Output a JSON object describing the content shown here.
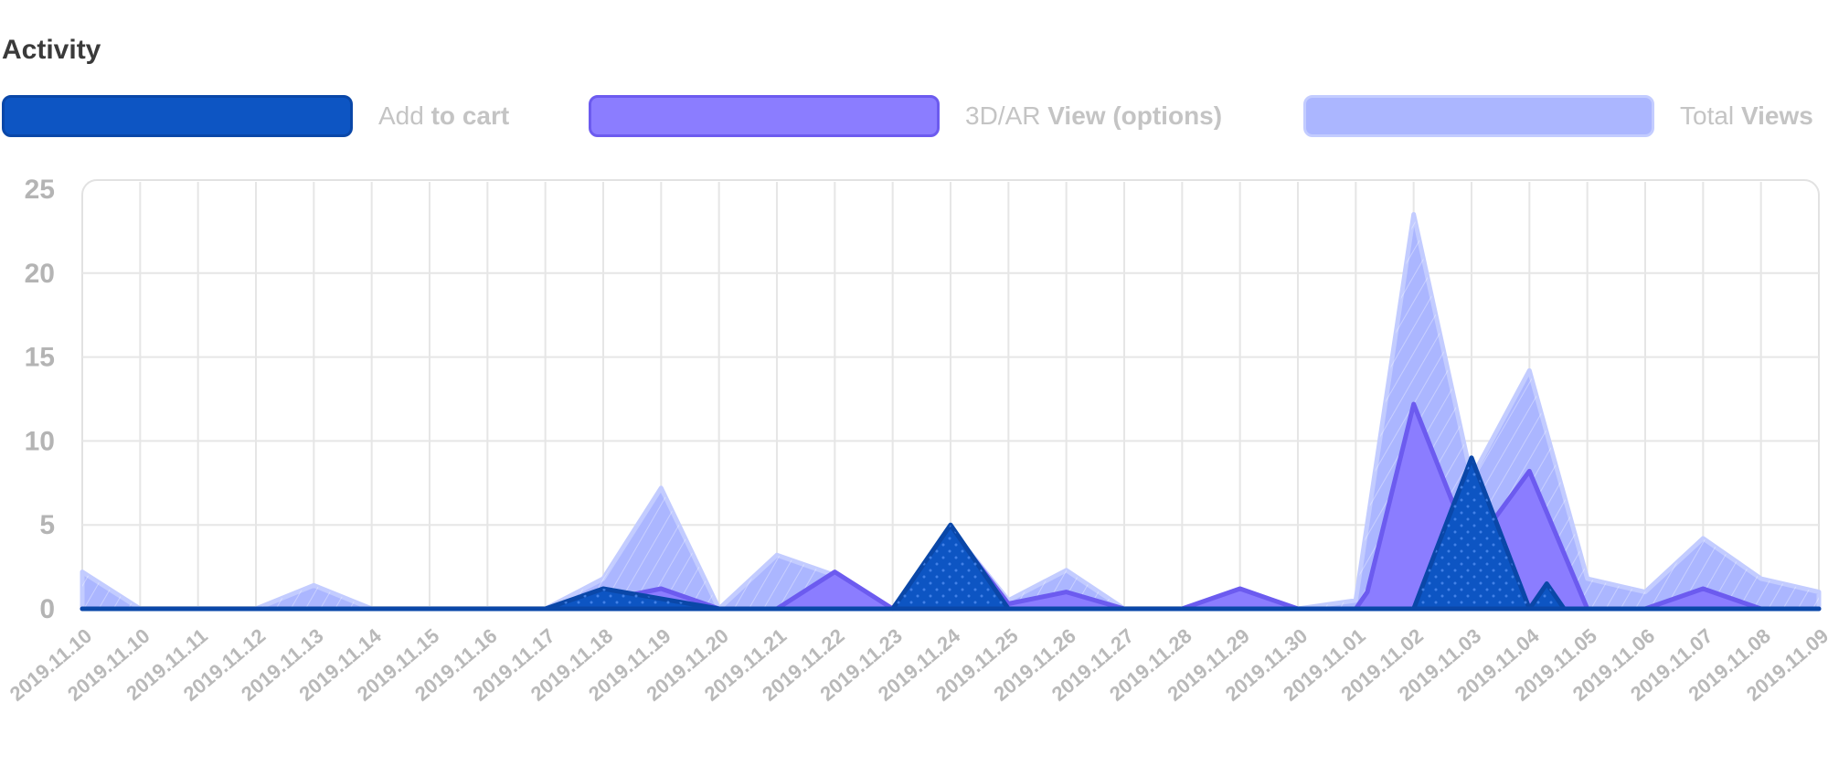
{
  "title": "Activity",
  "legend": [
    {
      "light": "Add ",
      "bold": "to cart",
      "fill": "#0d55c3",
      "stroke": "#0a47a8"
    },
    {
      "light": "3D/AR ",
      "bold": "View (options)",
      "fill": "#8b7dff",
      "stroke": "#6c5bef"
    },
    {
      "light": "Total ",
      "bold": "Views",
      "fill": "#abb6ff",
      "stroke": "#c3ccff"
    }
  ],
  "chart_data": {
    "type": "area",
    "categories": [
      "2019.11.10",
      "2019.11.10",
      "2019.11.11",
      "2019.11.12",
      "2019.11.13",
      "2019.11.14",
      "2019.11.15",
      "2019.11.16",
      "2019.11.17",
      "2019.11.18",
      "2019.11.19",
      "2019.11.20",
      "2019.11.21",
      "2019.11.22",
      "2019.11.23",
      "2019.11.24",
      "2019.11.25",
      "2019.11.26",
      "2019.11.27",
      "2019.11.28",
      "2019.11.29",
      "2019.11.30",
      "2019.11.01",
      "2019.11.02",
      "2019.11.03",
      "2019.11.04",
      "2019.11.05",
      "2019.11.06",
      "2019.11.07",
      "2019.11.08",
      "2019.11.09"
    ],
    "ylim": [
      0,
      25
    ],
    "yticks": [
      0,
      5,
      10,
      15,
      20,
      25
    ],
    "grid": true,
    "series": [
      {
        "name": "Total Views",
        "points": [
          [
            0,
            2.2
          ],
          [
            1,
            0
          ],
          [
            2,
            0
          ],
          [
            3,
            0
          ],
          [
            4,
            1.4
          ],
          [
            5,
            0
          ],
          [
            6,
            0
          ],
          [
            7,
            0
          ],
          [
            8,
            0
          ],
          [
            9,
            1.8
          ],
          [
            10,
            7.2
          ],
          [
            11,
            0
          ],
          [
            12,
            3.2
          ],
          [
            13,
            2
          ],
          [
            14,
            0
          ],
          [
            15,
            4.8
          ],
          [
            16,
            0.5
          ],
          [
            17,
            2.3
          ],
          [
            18,
            0
          ],
          [
            19,
            0
          ],
          [
            20,
            1.2
          ],
          [
            21,
            0
          ],
          [
            22,
            0.5
          ],
          [
            23,
            23.5
          ],
          [
            24,
            7.8
          ],
          [
            25,
            14.2
          ],
          [
            26,
            1.8
          ],
          [
            27,
            1
          ],
          [
            28,
            4.2
          ],
          [
            29,
            1.8
          ],
          [
            30,
            1
          ]
        ]
      },
      {
        "name": "3D/AR View (options)",
        "points": [
          [
            0,
            0
          ],
          [
            1,
            0
          ],
          [
            2,
            0
          ],
          [
            3,
            0
          ],
          [
            4,
            0
          ],
          [
            5,
            0
          ],
          [
            6,
            0
          ],
          [
            7,
            0
          ],
          [
            8,
            0
          ],
          [
            9,
            0.5
          ],
          [
            10,
            1.2
          ],
          [
            11,
            0
          ],
          [
            12,
            0
          ],
          [
            13,
            2.2
          ],
          [
            14,
            0
          ],
          [
            15,
            4.8
          ],
          [
            16,
            0.3
          ],
          [
            17,
            1
          ],
          [
            18,
            0
          ],
          [
            19,
            0
          ],
          [
            20,
            1.2
          ],
          [
            21,
            0
          ],
          [
            22,
            0
          ],
          [
            22.2,
            1
          ],
          [
            23,
            12.2
          ],
          [
            24,
            3.5
          ],
          [
            25,
            8.2
          ],
          [
            26,
            0
          ],
          [
            27,
            0
          ],
          [
            28,
            1.2
          ],
          [
            29,
            0
          ],
          [
            30,
            0
          ]
        ]
      },
      {
        "name": "Add to cart",
        "points": [
          [
            0,
            0
          ],
          [
            8,
            0
          ],
          [
            9,
            1.2
          ],
          [
            11,
            0
          ],
          [
            14,
            0
          ],
          [
            15,
            5
          ],
          [
            16,
            0
          ],
          [
            23,
            0
          ],
          [
            24,
            9
          ],
          [
            25,
            0
          ],
          [
            25.3,
            1.5
          ],
          [
            25.6,
            0
          ],
          [
            30,
            0
          ]
        ]
      }
    ]
  }
}
